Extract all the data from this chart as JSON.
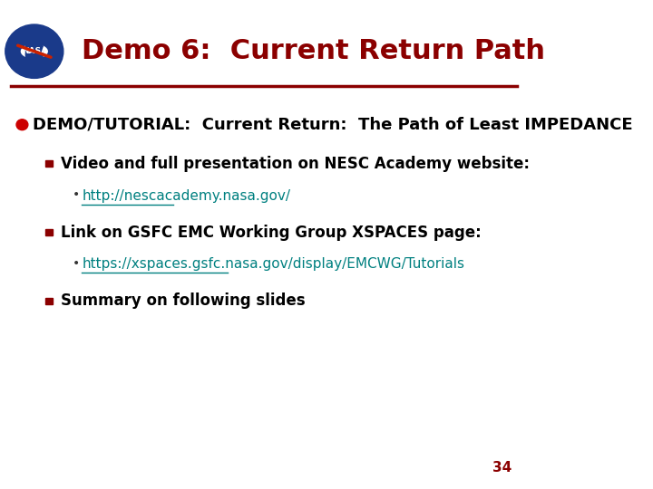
{
  "title": "Demo 6:  Current Return Path",
  "title_color": "#8B0000",
  "title_fontsize": 22,
  "bg_color": "#FFFFFF",
  "separator_color": "#8B0000",
  "bullet1_text": "DEMO/TUTORIAL:  Current Return:  The Path of Least IMPEDANCE",
  "bullet1_color": "#000000",
  "bullet1_fontsize": 13,
  "sub_bullet1_text": "Video and full presentation on NESC Academy website:",
  "sub_bullet1_color": "#000000",
  "sub_bullet1_fontsize": 12,
  "link1_text": "http://nescacademy.nasa.gov/",
  "link1_color": "#008080",
  "link1_fontsize": 11,
  "sub_bullet2_text": "Link on GSFC EMC Working Group XSPACES page:",
  "sub_bullet2_color": "#000000",
  "sub_bullet2_fontsize": 12,
  "link2_text": "https://xspaces.gsfc.nasa.gov/display/EMCWG/Tutorials",
  "link2_color": "#008080",
  "link2_fontsize": 11,
  "sub_bullet3_text": "Summary on following slides",
  "sub_bullet3_color": "#000000",
  "sub_bullet3_fontsize": 12,
  "page_number": "34",
  "page_number_color": "#8B0000",
  "page_number_fontsize": 11,
  "red_dot_color": "#CC0000",
  "dark_red_sq_color": "#8B0000"
}
